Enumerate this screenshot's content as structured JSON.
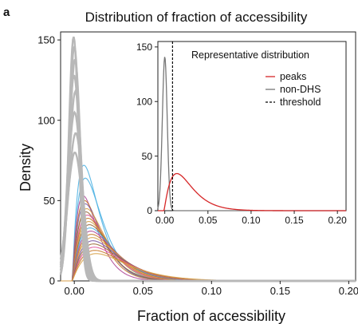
{
  "figure_letter": "a",
  "chart_data": [
    {
      "type": "line",
      "title": "Distribution of fraction of accessibility",
      "xlabel": "Fraction of accessibility",
      "ylabel": "Density",
      "xlim": [
        -0.01,
        0.205
      ],
      "ylim": [
        0,
        155
      ],
      "xticks": [
        0.0,
        0.05,
        0.1,
        0.15,
        0.2
      ],
      "xtick_labels": [
        "0.00",
        "0.05",
        "0.10",
        "0.15",
        "0.20"
      ],
      "yticks": [
        0,
        50,
        100,
        150
      ],
      "ytick_labels": [
        "0",
        "50",
        "100",
        "150"
      ],
      "grid": false,
      "series_groups": [
        {
          "color": "#b8b8b8",
          "curves": [
            {
              "peak_x": -0.0005,
              "peak_y": 152,
              "width": 0.0035
            },
            {
              "peak_x": 0.0,
              "peak_y": 146,
              "width": 0.0038
            },
            {
              "peak_x": 0.0005,
              "peak_y": 138,
              "width": 0.004
            },
            {
              "peak_x": -0.0002,
              "peak_y": 128,
              "width": 0.0042
            },
            {
              "peak_x": 0.0008,
              "peak_y": 118,
              "width": 0.0045
            },
            {
              "peak_x": 0.0002,
              "peak_y": 105,
              "width": 0.0048
            },
            {
              "peak_x": 0.001,
              "peak_y": 92,
              "width": 0.0052
            },
            {
              "peak_x": 0.0004,
              "peak_y": 80,
              "width": 0.0055
            }
          ]
        },
        {
          "color": "mixed",
          "curves": [
            {
              "color": "#4fb3e3",
              "peak_x": 0.007,
              "peak_y": 72
            },
            {
              "color": "#4fb3e3",
              "peak_x": 0.008,
              "peak_y": 64
            },
            {
              "color": "#b04a9a",
              "peak_x": 0.0065,
              "peak_y": 53
            },
            {
              "color": "#c87a2a",
              "peak_x": 0.0075,
              "peak_y": 50
            },
            {
              "color": "#7b5aa6",
              "peak_x": 0.008,
              "peak_y": 48
            },
            {
              "color": "#d7a24a",
              "peak_x": 0.009,
              "peak_y": 45
            },
            {
              "color": "#9a6a3a",
              "peak_x": 0.0085,
              "peak_y": 43
            },
            {
              "color": "#e0559a",
              "peak_x": 0.0095,
              "peak_y": 41
            },
            {
              "color": "#c87a2a",
              "peak_x": 0.01,
              "peak_y": 39
            },
            {
              "color": "#d7a24a",
              "peak_x": 0.0105,
              "peak_y": 37
            },
            {
              "color": "#9a6a3a",
              "peak_x": 0.011,
              "peak_y": 35
            },
            {
              "color": "#4fb3e3",
              "peak_x": 0.0115,
              "peak_y": 33
            },
            {
              "color": "#b04a9a",
              "peak_x": 0.012,
              "peak_y": 31
            },
            {
              "color": "#c87a2a",
              "peak_x": 0.0125,
              "peak_y": 29
            },
            {
              "color": "#d7a24a",
              "peak_x": 0.013,
              "peak_y": 27
            },
            {
              "color": "#7b5aa6",
              "peak_x": 0.0135,
              "peak_y": 25
            },
            {
              "color": "#9a6a3a",
              "peak_x": 0.014,
              "peak_y": 23
            },
            {
              "color": "#e0559a",
              "peak_x": 0.0145,
              "peak_y": 21
            },
            {
              "color": "#c87a2a",
              "peak_x": 0.015,
              "peak_y": 19
            },
            {
              "color": "#d7a24a",
              "peak_x": 0.016,
              "peak_y": 17
            }
          ]
        }
      ]
    },
    {
      "type": "line",
      "title": "Representative distribution",
      "xlim": [
        -0.008,
        0.21
      ],
      "ylim": [
        0,
        155
      ],
      "xticks": [
        0.0,
        0.05,
        0.1,
        0.15,
        0.2
      ],
      "xtick_labels": [
        "0.00",
        "0.05",
        "0.10",
        "0.15",
        "0.20"
      ],
      "yticks": [
        0,
        50,
        100,
        150
      ],
      "ytick_labels": [
        "0",
        "50",
        "100",
        "150"
      ],
      "legend_position": "top-right",
      "series": [
        {
          "name": "peaks",
          "color": "#d62728",
          "peak_x": 0.014,
          "peak_y": 34
        },
        {
          "name": "non-DHS",
          "color": "#777777",
          "peak_x": 0.0,
          "peak_y": 141
        },
        {
          "name": "threshold",
          "color": "#000000",
          "style": "dashed",
          "x": 0.009
        }
      ]
    }
  ]
}
